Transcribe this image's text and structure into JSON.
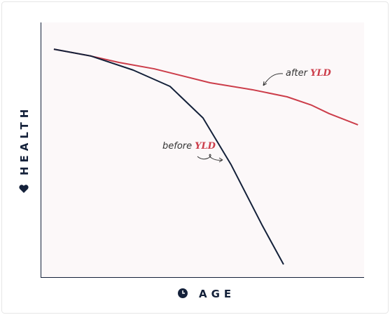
{
  "chart_data": {
    "type": "line",
    "y_label": "HEALTH",
    "x_label": "AGE",
    "xlim": [
      0,
      100
    ],
    "ylim": [
      0,
      100
    ],
    "series": [
      {
        "color": "#cc3d4a",
        "x": [
          4.1,
          15.6,
          24.2,
          35.1,
          52.4,
          65.4,
          76.2,
          83.8,
          89.2,
          98.1
        ],
        "values": [
          89.5,
          86.8,
          84.3,
          81.8,
          76.3,
          73.6,
          70.8,
          67.5,
          64.2,
          59.8
        ]
      },
      {
        "color": "#14213a",
        "x": [
          4.1,
          15.6,
          28.6,
          40.0,
          50.2,
          58.9,
          68.6,
          75.1
        ],
        "values": [
          89.5,
          86.8,
          81.3,
          74.9,
          62.5,
          44.1,
          20.1,
          5.0
        ]
      }
    ],
    "annotations": [
      {
        "text": "after",
        "highlight": "YLD"
      },
      {
        "text": "before",
        "highlight": "YLD"
      }
    ]
  }
}
